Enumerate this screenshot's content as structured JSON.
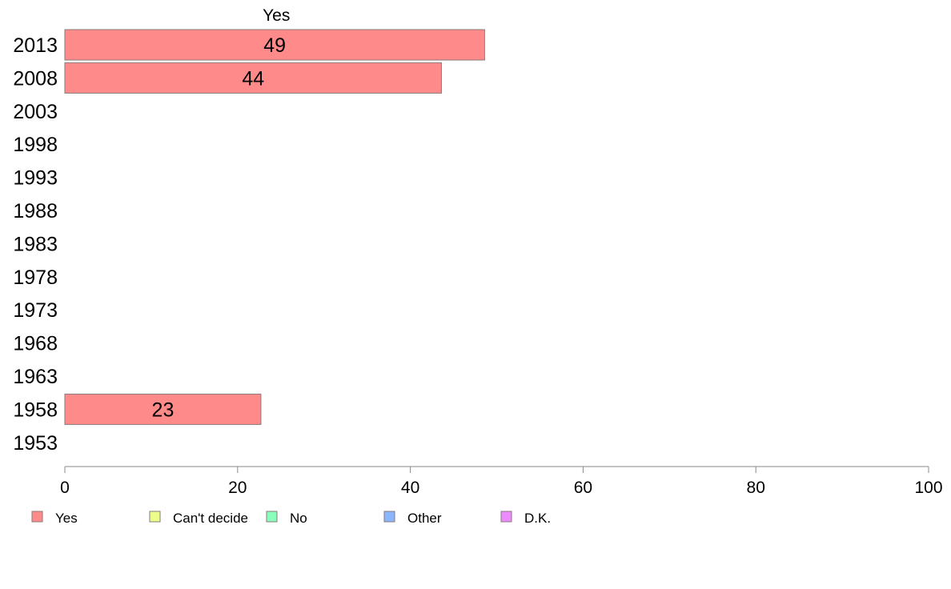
{
  "chart_data": {
    "type": "bar",
    "orientation": "horizontal",
    "stacked": true,
    "column_header": "Yes",
    "categories": [
      "2013",
      "2008",
      "2003",
      "1998",
      "1993",
      "1988",
      "1983",
      "1978",
      "1973",
      "1968",
      "1963",
      "1958",
      "1953"
    ],
    "series": [
      {
        "name": "Yes",
        "color": "#ff8a8a",
        "values": [
          48.6,
          43.6,
          null,
          null,
          null,
          null,
          null,
          null,
          null,
          null,
          null,
          22.7,
          null
        ],
        "labels": [
          "49",
          "44",
          "",
          "",
          "",
          "",
          "",
          "",
          "",
          "",
          "",
          "23",
          ""
        ]
      },
      {
        "name": "Can't decide",
        "color": "#ecff8a",
        "values": [
          null,
          null,
          null,
          null,
          null,
          null,
          null,
          null,
          null,
          null,
          null,
          null,
          null
        ]
      },
      {
        "name": "No",
        "color": "#8affbb",
        "values": [
          null,
          null,
          null,
          null,
          null,
          null,
          null,
          null,
          null,
          null,
          null,
          null,
          null
        ]
      },
      {
        "name": "Other",
        "color": "#8ab6ff",
        "values": [
          null,
          null,
          null,
          null,
          null,
          null,
          null,
          null,
          null,
          null,
          null,
          null,
          null
        ]
      },
      {
        "name": "D.K.",
        "color": "#ec8aff",
        "values": [
          null,
          null,
          null,
          null,
          null,
          null,
          null,
          null,
          null,
          null,
          null,
          null,
          null
        ]
      }
    ],
    "xlim": [
      0,
      100
    ],
    "xticks": [
      0,
      20,
      40,
      60,
      80,
      100
    ],
    "title": "",
    "xlabel": "",
    "ylabel": "",
    "grid": false,
    "legend_position": "bottom"
  }
}
